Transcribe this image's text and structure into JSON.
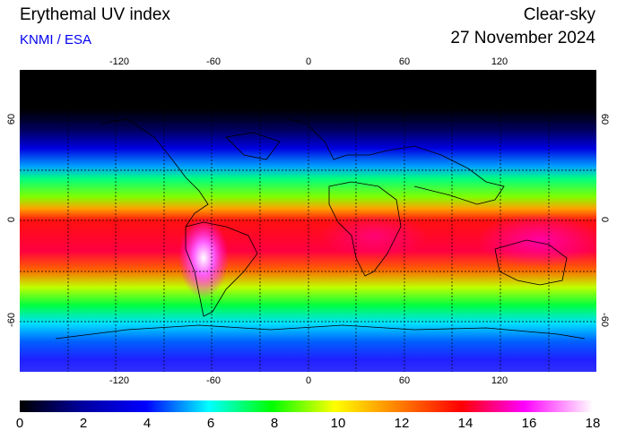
{
  "header": {
    "title": "Erythemal UV index",
    "credit": "KNMI / ESA",
    "product": "Clear-sky",
    "date": "27 November 2024"
  },
  "map": {
    "projection": "equirectangular",
    "lon_range": [
      -180,
      180
    ],
    "lat_range": [
      -90,
      90
    ],
    "grid": "dotted",
    "lon_ticks_top": [
      "-120",
      "-60",
      "0",
      "60",
      "120"
    ],
    "lon_ticks_bottom": [
      "-120",
      "-60",
      "0",
      "60",
      "120"
    ],
    "lat_ticks_left": [
      "60",
      "0",
      "-60"
    ],
    "lat_ticks_right": [
      "60",
      "0",
      "-60"
    ]
  },
  "colorbar": {
    "min": 0,
    "max": 18,
    "labels": [
      "0",
      "2",
      "4",
      "6",
      "8",
      "10",
      "12",
      "14",
      "16",
      "18"
    ]
  },
  "colors": {
    "credit": "#0000ee",
    "polar_night": "#000000",
    "uv_low": "#0000ff",
    "uv_mid": "#00ff00",
    "uv_high": "#ff0000",
    "uv_extreme": "#ffffff"
  }
}
